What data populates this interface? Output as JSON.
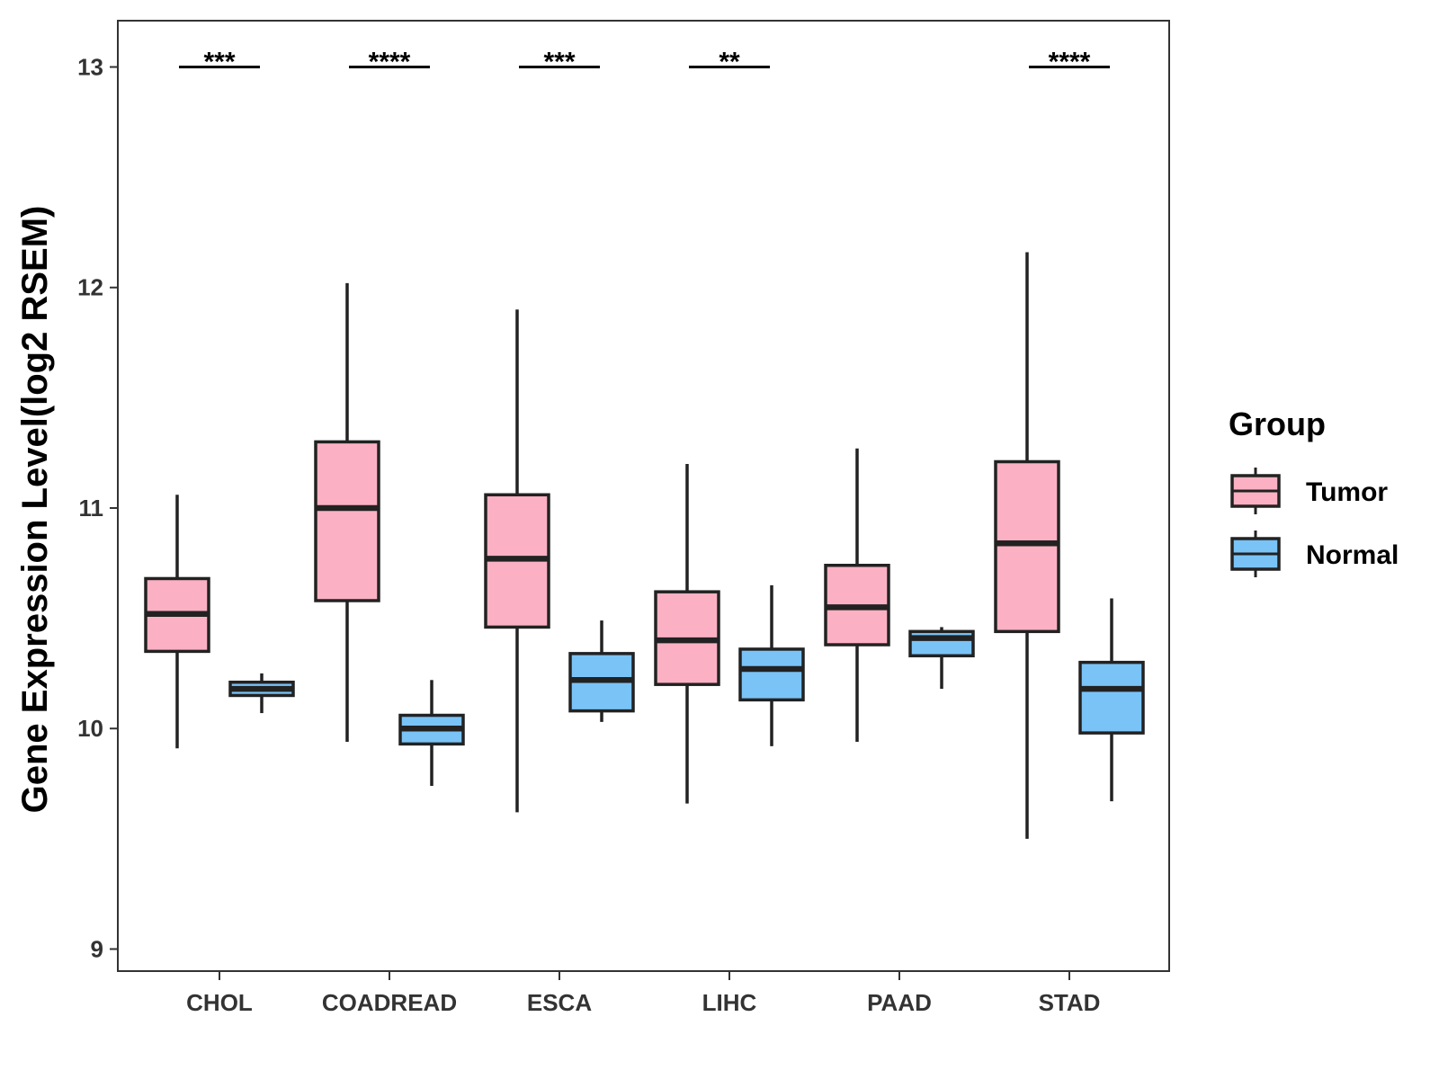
{
  "chart_data": {
    "type": "boxplot",
    "title": "",
    "xlabel": "",
    "ylabel": "Gene Expression Level(log2 RSEM)",
    "ylim": [
      8.9,
      13.21
    ],
    "yticks": [
      9,
      10,
      11,
      12,
      13
    ],
    "categories": [
      "CHOL",
      "COADREAD",
      "ESCA",
      "LIHC",
      "PAAD",
      "STAD"
    ],
    "legend": {
      "title": "Group",
      "position": "right"
    },
    "series": [
      {
        "name": "Tumor",
        "color": "#FBB1C3",
        "boxes": [
          {
            "category": "CHOL",
            "whisker_low": 9.91,
            "q1": 10.35,
            "median": 10.52,
            "q3": 10.68,
            "whisker_high": 11.06
          },
          {
            "category": "COADREAD",
            "whisker_low": 9.94,
            "q1": 10.58,
            "median": 11.0,
            "q3": 11.3,
            "whisker_high": 12.02
          },
          {
            "category": "ESCA",
            "whisker_low": 9.62,
            "q1": 10.46,
            "median": 10.77,
            "q3": 11.06,
            "whisker_high": 11.9
          },
          {
            "category": "LIHC",
            "whisker_low": 9.66,
            "q1": 10.2,
            "median": 10.4,
            "q3": 10.62,
            "whisker_high": 11.2
          },
          {
            "category": "PAAD",
            "whisker_low": 9.94,
            "q1": 10.38,
            "median": 10.55,
            "q3": 10.74,
            "whisker_high": 11.27
          },
          {
            "category": "STAD",
            "whisker_low": 9.5,
            "q1": 10.44,
            "median": 10.84,
            "q3": 11.21,
            "whisker_high": 12.16
          }
        ]
      },
      {
        "name": "Normal",
        "color": "#7AC3F6",
        "boxes": [
          {
            "category": "CHOL",
            "whisker_low": 10.07,
            "q1": 10.15,
            "median": 10.18,
            "q3": 10.21,
            "whisker_high": 10.25
          },
          {
            "category": "COADREAD",
            "whisker_low": 9.74,
            "q1": 9.93,
            "median": 10.0,
            "q3": 10.06,
            "whisker_high": 10.22
          },
          {
            "category": "ESCA",
            "whisker_low": 10.03,
            "q1": 10.08,
            "median": 10.22,
            "q3": 10.34,
            "whisker_high": 10.49
          },
          {
            "category": "LIHC",
            "whisker_low": 9.92,
            "q1": 10.13,
            "median": 10.27,
            "q3": 10.36,
            "whisker_high": 10.65
          },
          {
            "category": "PAAD",
            "whisker_low": 10.18,
            "q1": 10.33,
            "median": 10.41,
            "q3": 10.44,
            "whisker_high": 10.46
          },
          {
            "category": "STAD",
            "whisker_low": 9.67,
            "q1": 9.98,
            "median": 10.18,
            "q3": 10.3,
            "whisker_high": 10.59
          }
        ]
      }
    ],
    "significance": [
      {
        "category": "CHOL",
        "y": 13.0,
        "label": "***"
      },
      {
        "category": "COADREAD",
        "y": 13.0,
        "label": "****"
      },
      {
        "category": "ESCA",
        "y": 13.0,
        "label": "***"
      },
      {
        "category": "LIHC",
        "y": 13.0,
        "label": "**"
      },
      {
        "category": "STAD",
        "y": 13.0,
        "label": "****"
      }
    ],
    "grid": false
  }
}
